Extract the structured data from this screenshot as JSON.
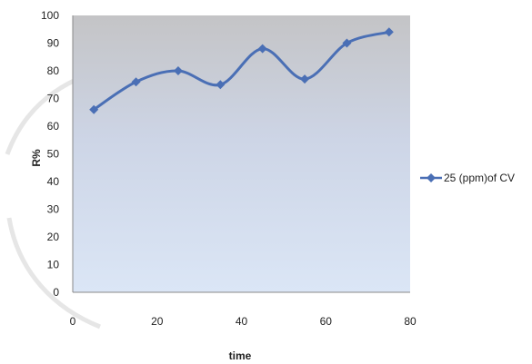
{
  "chart_data": {
    "type": "line",
    "title": "",
    "xlabel": "time",
    "ylabel": "R%",
    "xlim": [
      0,
      80
    ],
    "ylim": [
      0,
      100
    ],
    "x_ticks": [
      0,
      20,
      40,
      60,
      80
    ],
    "y_ticks": [
      0,
      10,
      20,
      30,
      40,
      50,
      60,
      70,
      80,
      90,
      100
    ],
    "grid": false,
    "legend_position": "right",
    "series": [
      {
        "name": "25 (ppm)of CV",
        "color": "#4a6fb5",
        "marker": "diamond",
        "x": [
          5,
          15,
          25,
          35,
          45,
          55,
          65,
          75
        ],
        "y": [
          66,
          76,
          80,
          75,
          88,
          77,
          90,
          94
        ]
      }
    ]
  }
}
